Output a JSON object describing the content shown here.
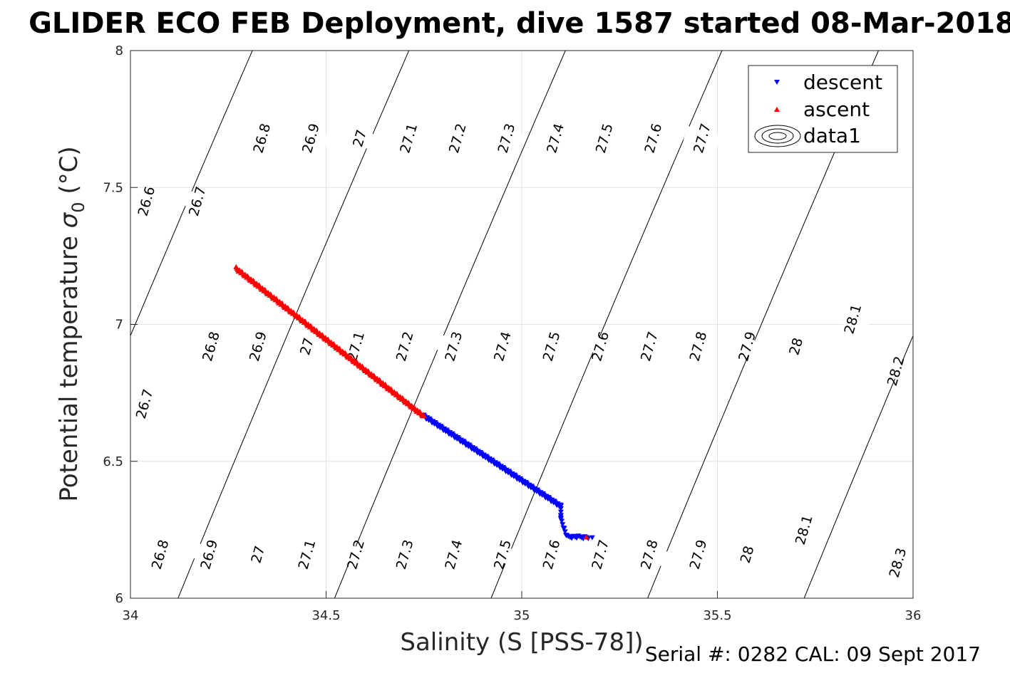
{
  "chart_data": {
    "type": "scatter",
    "title": "GLIDER ECO FEB Deployment, dive 1587 started 08-Mar-2018",
    "xlabel": "Salinity (S [PSS-78])",
    "ylabel_prefix": "Potential temperature ",
    "ylabel_symbol": "σ",
    "ylabel_subscript": "0",
    "ylabel_suffix": " (°C)",
    "xlim": [
      34,
      36
    ],
    "ylim": [
      6,
      8
    ],
    "xticks": [
      34,
      34.5,
      35,
      35.5,
      36
    ],
    "xtick_labels": [
      "34",
      "34.5",
      "35",
      "35.5",
      "36"
    ],
    "yticks": [
      6,
      6.5,
      7,
      7.5,
      8
    ],
    "ytick_labels": [
      "6",
      "6.5",
      "7",
      "7.5",
      "8"
    ],
    "grid": true,
    "legend_position": "top-right",
    "legend": [
      "descent",
      "ascent",
      "data1"
    ],
    "series": [
      {
        "name": "descent",
        "marker": "triangle-down",
        "color": "#0000ff",
        "segments": [
          {
            "from": [
              34.75,
              6.665
            ],
            "to": [
              35.1,
              6.335
            ],
            "count": 170
          },
          {
            "from": [
              35.1,
              6.335
            ],
            "to": [
              35.1,
              6.29
            ],
            "count": 6
          },
          {
            "from": [
              35.1,
              6.29
            ],
            "to": [
              35.115,
              6.225
            ],
            "count": 8
          },
          {
            "from": [
              35.115,
              6.225
            ],
            "to": [
              35.17,
              6.222
            ],
            "count": 14
          }
        ],
        "extra_points": [
          [
            35.18,
            6.222
          ]
        ]
      },
      {
        "name": "ascent",
        "marker": "triangle-up",
        "color": "#ff0000",
        "segments": [
          {
            "from": [
              34.27,
              7.205
            ],
            "to": [
              34.75,
              6.665
            ],
            "count": 230
          }
        ],
        "extra_points": [
          [
            35.165,
            6.223
          ]
        ]
      }
    ],
    "isopycnals": {
      "levels": [
        26.6,
        26.7,
        26.8,
        26.9,
        27.0,
        27.1,
        27.2,
        27.3,
        27.4,
        27.5,
        27.6,
        27.7,
        27.8,
        27.9,
        28.0,
        28.1,
        28.2,
        28.3
      ],
      "labels": [
        {
          "text": "26.6",
          "x": 34.04,
          "y": 7.45
        },
        {
          "text": "26.7",
          "x": 34.17,
          "y": 7.45
        },
        {
          "text": "26.8",
          "x": 34.335,
          "y": 7.68
        },
        {
          "text": "26.9",
          "x": 34.46,
          "y": 7.68
        },
        {
          "text": "27",
          "x": 34.585,
          "y": 7.68
        },
        {
          "text": "27.1",
          "x": 34.71,
          "y": 7.68
        },
        {
          "text": "27.2",
          "x": 34.835,
          "y": 7.68
        },
        {
          "text": "27.3",
          "x": 34.96,
          "y": 7.68
        },
        {
          "text": "27.4",
          "x": 35.085,
          "y": 7.68
        },
        {
          "text": "27.5",
          "x": 35.21,
          "y": 7.68
        },
        {
          "text": "27.6",
          "x": 35.335,
          "y": 7.68
        },
        {
          "text": "27.7",
          "x": 35.46,
          "y": 7.68
        },
        {
          "text": "26.8",
          "x": 34.205,
          "y": 6.92
        },
        {
          "text": "26.9",
          "x": 34.325,
          "y": 6.92
        },
        {
          "text": "27",
          "x": 34.45,
          "y": 6.92
        },
        {
          "text": "27.1",
          "x": 34.575,
          "y": 6.92
        },
        {
          "text": "27.2",
          "x": 34.7,
          "y": 6.92
        },
        {
          "text": "27.3",
          "x": 34.825,
          "y": 6.92
        },
        {
          "text": "27.4",
          "x": 34.95,
          "y": 6.92
        },
        {
          "text": "27.5",
          "x": 35.075,
          "y": 6.92
        },
        {
          "text": "27.6",
          "x": 35.2,
          "y": 6.92
        },
        {
          "text": "27.7",
          "x": 35.325,
          "y": 6.92
        },
        {
          "text": "27.8",
          "x": 35.45,
          "y": 6.92
        },
        {
          "text": "27.9",
          "x": 35.575,
          "y": 6.92
        },
        {
          "text": "28",
          "x": 35.7,
          "y": 6.92
        },
        {
          "text": "28.1",
          "x": 35.845,
          "y": 7.02
        },
        {
          "text": "28.2",
          "x": 35.955,
          "y": 6.83
        },
        {
          "text": "26.7",
          "x": 34.035,
          "y": 6.71
        },
        {
          "text": "26.8",
          "x": 34.075,
          "y": 6.16
        },
        {
          "text": "26.9",
          "x": 34.2,
          "y": 6.16
        },
        {
          "text": "27",
          "x": 34.325,
          "y": 6.16
        },
        {
          "text": "27.1",
          "x": 34.45,
          "y": 6.16
        },
        {
          "text": "27.2",
          "x": 34.575,
          "y": 6.16
        },
        {
          "text": "27.3",
          "x": 34.7,
          "y": 6.16
        },
        {
          "text": "27.4",
          "x": 34.825,
          "y": 6.16
        },
        {
          "text": "27.5",
          "x": 34.95,
          "y": 6.16
        },
        {
          "text": "27.6",
          "x": 35.075,
          "y": 6.16
        },
        {
          "text": "27.7",
          "x": 35.2,
          "y": 6.16
        },
        {
          "text": "27.8",
          "x": 35.325,
          "y": 6.16
        },
        {
          "text": "27.9",
          "x": 35.45,
          "y": 6.16
        },
        {
          "text": "28",
          "x": 35.575,
          "y": 6.16
        },
        {
          "text": "28.1",
          "x": 35.72,
          "y": 6.25
        },
        {
          "text": "28.3",
          "x": 35.96,
          "y": 6.13
        }
      ]
    }
  },
  "footer": "Serial #: 0282  CAL: 09 Sept 2017"
}
